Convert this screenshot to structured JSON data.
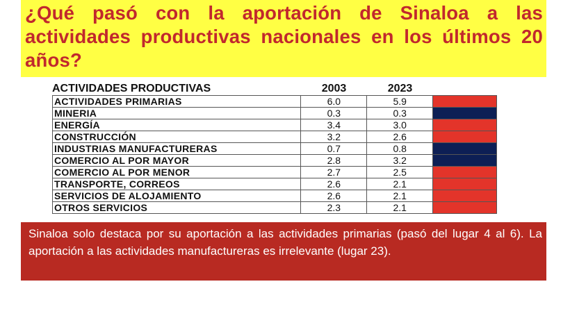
{
  "title": "¿Qué pasó con la aportación de Sinaloa a las actividades productivas nacionales en los últimos 20 años?",
  "table": {
    "headers": {
      "activity": "ACTIVIDADES PRODUCTIVAS",
      "year1": "2003",
      "year2": "2023"
    },
    "rows": [
      {
        "activity": "ACTIVIDADES PRIMARIAS",
        "v2003": "6.0",
        "v2023": "5.9",
        "trend_color": "#e3342a"
      },
      {
        "activity": "MINERIA",
        "v2003": "0.3",
        "v2023": "0.3",
        "trend_color": "#0d1f55"
      },
      {
        "activity": "ENERGÍA",
        "v2003": "3.4",
        "v2023": "3.0",
        "trend_color": "#e3342a"
      },
      {
        "activity": "CONSTRUCCIÓN",
        "v2003": "3.2",
        "v2023": "2.6",
        "trend_color": "#e3342a"
      },
      {
        "activity": "INDUSTRIAS MANUFACTURERAS",
        "v2003": "0.7",
        "v2023": "0.8",
        "trend_color": "#0d1f55"
      },
      {
        "activity": "COMERCIO AL POR MAYOR",
        "v2003": "2.8",
        "v2023": "3.2",
        "trend_color": "#0d1f55"
      },
      {
        "activity": "COMERCIO AL POR MENOR",
        "v2003": "2.7",
        "v2023": "2.5",
        "trend_color": "#e3342a"
      },
      {
        "activity": "TRANSPORTE, CORREOS",
        "v2003": "2.6",
        "v2023": "2.1",
        "trend_color": "#e3342a"
      },
      {
        "activity": "SERVICIOS DE ALOJAMIENTO",
        "v2003": "2.6",
        "v2023": "2.1",
        "trend_color": "#e3342a"
      },
      {
        "activity": "OTROS SERVICIOS",
        "v2003": "2.3",
        "v2023": "2.1",
        "trend_color": "#e3342a"
      }
    ]
  },
  "note": "Sinaloa solo destaca por su aportación a las actividades primarias (pasó del lugar 4 al 6). La aportación a las actividades manufactureras es irrelevante (lugar 23).",
  "colors": {
    "title_bg": "#ffff44",
    "title_text": "#c1282d",
    "note_bg": "#b82a22",
    "decrease": "#e3342a",
    "increase_or_equal": "#0d1f55"
  }
}
